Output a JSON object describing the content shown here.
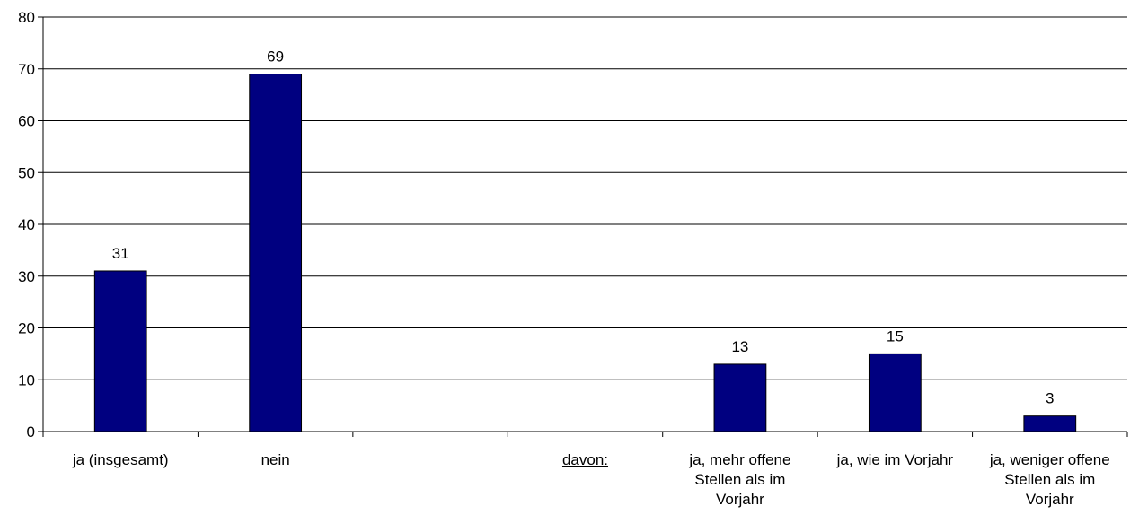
{
  "chart_data": {
    "type": "bar",
    "title": "",
    "xlabel": "",
    "ylabel": "",
    "ylim": [
      0,
      80
    ],
    "yticks": [
      0,
      10,
      20,
      30,
      40,
      50,
      60,
      70,
      80
    ],
    "grid": true,
    "legend": "none",
    "categories": [
      "ja (insgesamt)",
      "nein",
      "",
      "davon:",
      "ja, mehr offene Stellen als im Vorjahr",
      "ja, wie im Vorjahr",
      "ja, weniger offene Stellen als im Vorjahr"
    ],
    "category_lines": [
      [
        "ja (insgesamt)"
      ],
      [
        "nein"
      ],
      [],
      [
        "davon:"
      ],
      [
        "ja, mehr offene",
        "Stellen als im",
        "Vorjahr"
      ],
      [
        "ja, wie im Vorjahr"
      ],
      [
        "ja, weniger offene",
        "Stellen als im",
        "Vorjahr"
      ]
    ],
    "series": [
      {
        "values": [
          31,
          69,
          null,
          null,
          13,
          15,
          3
        ],
        "color": "#000080"
      }
    ]
  }
}
